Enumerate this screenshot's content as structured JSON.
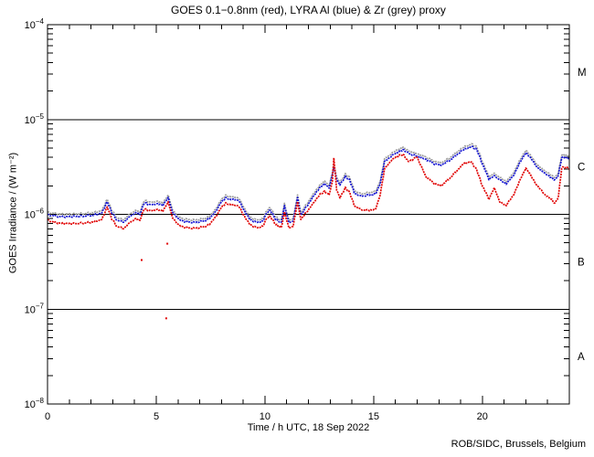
{
  "credit": "ROB/SIDC, Brussels, Belgium",
  "chart_data": {
    "type": "line",
    "title": "GOES 0.1−0.8nm (red), LYRA Al (blue) & Zr (grey) proxy",
    "xlabel": "Time / h UTC, 18 Sep 2022",
    "ylabel": "GOES Irradiance / (W m⁻²)",
    "xlim": [
      0,
      24
    ],
    "ylim": [
      1e-08,
      0.0001
    ],
    "x_major_ticks": [
      0,
      5,
      10,
      15,
      20
    ],
    "x_minor_step": 1,
    "y_tick_exps": [
      -4,
      -5,
      -6,
      -7,
      -8
    ],
    "y_ticks": [
      {
        "base": "10",
        "sup": "−4"
      },
      {
        "base": "10",
        "sup": "−5"
      },
      {
        "base": "10",
        "sup": "−6"
      },
      {
        "base": "10",
        "sup": "−7"
      },
      {
        "base": "10",
        "sup": "−8"
      }
    ],
    "reference_line_values": [
      1e-05,
      1e-06,
      1e-07
    ],
    "flare_class_labels": [
      {
        "label": "M",
        "value": 3.16e-05
      },
      {
        "label": "C",
        "value": 3.16e-06
      },
      {
        "label": "B",
        "value": 3.16e-07
      },
      {
        "label": "A",
        "value": 3.16e-08
      }
    ],
    "grid": false,
    "legend": "encoded in title colors",
    "background": "#ffffff",
    "frame_color": "#000000",
    "value_scale": 1e-06,
    "hours": [
      0.0,
      0.3,
      0.7,
      1.2,
      1.7,
      2.1,
      2.5,
      2.75,
      2.95,
      3.2,
      3.5,
      3.8,
      4.05,
      4.25,
      4.45,
      4.7,
      5.0,
      5.3,
      5.55,
      5.75,
      6.0,
      6.3,
      6.7,
      7.1,
      7.45,
      7.7,
      8.0,
      8.2,
      8.5,
      8.8,
      9.0,
      9.3,
      9.65,
      9.9,
      10.1,
      10.25,
      10.5,
      10.75,
      10.9,
      11.1,
      11.3,
      11.5,
      11.65,
      11.9,
      12.2,
      12.5,
      12.75,
      12.95,
      13.1,
      13.17,
      13.3,
      13.45,
      13.7,
      13.9,
      14.1,
      14.4,
      14.8,
      15.1,
      15.3,
      15.5,
      15.8,
      16.1,
      16.35,
      16.6,
      17.0,
      17.4,
      17.8,
      18.1,
      18.5,
      18.9,
      19.2,
      19.5,
      19.75,
      20.0,
      20.3,
      20.55,
      20.8,
      21.1,
      21.4,
      21.7,
      22.0,
      22.3,
      22.6,
      22.9,
      23.15,
      23.35,
      23.5,
      23.65,
      23.85,
      24.0
    ],
    "series": [
      {
        "name": "Zr (grey) proxy",
        "color": "#9c9c9c",
        "values": [
          1.06,
          1.02,
          1.0,
          1.01,
          1.02,
          1.04,
          1.09,
          1.44,
          1.11,
          0.91,
          0.88,
          1.01,
          1.1,
          1.06,
          1.41,
          1.33,
          1.38,
          1.31,
          1.59,
          1.11,
          0.95,
          0.89,
          0.87,
          0.89,
          0.95,
          1.11,
          1.43,
          1.57,
          1.53,
          1.48,
          1.22,
          0.93,
          0.87,
          0.9,
          1.11,
          1.17,
          0.93,
          0.87,
          1.29,
          0.87,
          0.9,
          1.59,
          1.04,
          1.27,
          1.59,
          2.01,
          2.23,
          2.01,
          2.76,
          3.29,
          2.44,
          2.17,
          2.65,
          2.44,
          1.8,
          1.64,
          1.7,
          1.75,
          2.23,
          3.82,
          4.35,
          4.77,
          5.09,
          4.66,
          4.35,
          4.03,
          3.6,
          3.5,
          3.92,
          4.66,
          5.19,
          5.51,
          5.09,
          3.6,
          2.49,
          2.7,
          2.44,
          2.23,
          2.65,
          3.6,
          4.77,
          3.92,
          3.18,
          2.86,
          2.6,
          2.44,
          2.76,
          4.24,
          4.19,
          4.13
        ]
      },
      {
        "name": "LYRA Al (blue)",
        "color": "#1414d2",
        "values": [
          1.0,
          0.96,
          0.94,
          0.95,
          0.96,
          0.98,
          1.03,
          1.36,
          1.05,
          0.86,
          0.83,
          0.95,
          1.04,
          1.0,
          1.33,
          1.25,
          1.3,
          1.24,
          1.5,
          1.05,
          0.9,
          0.84,
          0.82,
          0.84,
          0.9,
          1.05,
          1.35,
          1.48,
          1.44,
          1.4,
          1.15,
          0.88,
          0.82,
          0.85,
          1.05,
          1.1,
          0.88,
          0.82,
          1.22,
          0.82,
          0.85,
          1.5,
          0.98,
          1.2,
          1.5,
          1.9,
          2.1,
          1.9,
          2.6,
          3.1,
          2.3,
          2.05,
          2.5,
          2.3,
          1.7,
          1.55,
          1.6,
          1.65,
          2.1,
          3.6,
          4.1,
          4.5,
          4.8,
          4.4,
          4.1,
          3.8,
          3.4,
          3.3,
          3.7,
          4.4,
          4.9,
          5.2,
          4.8,
          3.4,
          2.35,
          2.55,
          2.3,
          2.1,
          2.5,
          3.4,
          4.5,
          3.7,
          3.0,
          2.7,
          2.45,
          2.3,
          2.6,
          4.0,
          3.95,
          3.9
        ]
      },
      {
        "name": "GOES 0.1−0.8nm (red)",
        "color": "#e00000",
        "values": [
          0.88,
          0.82,
          0.8,
          0.8,
          0.81,
          0.83,
          0.88,
          1.2,
          0.9,
          0.74,
          0.71,
          0.82,
          0.9,
          0.87,
          1.15,
          1.08,
          1.13,
          1.08,
          1.35,
          0.92,
          0.78,
          0.73,
          0.71,
          0.73,
          0.78,
          0.92,
          1.18,
          1.3,
          1.26,
          1.22,
          1.0,
          0.78,
          0.72,
          0.75,
          0.92,
          0.95,
          0.78,
          0.72,
          1.05,
          0.72,
          0.75,
          1.35,
          0.88,
          1.05,
          1.28,
          1.6,
          1.75,
          1.6,
          2.2,
          3.9,
          1.8,
          1.5,
          1.9,
          1.7,
          1.25,
          1.12,
          1.1,
          1.15,
          1.6,
          3.0,
          3.7,
          4.1,
          4.3,
          3.6,
          4.0,
          2.5,
          2.1,
          2.0,
          2.4,
          3.0,
          3.5,
          3.55,
          2.9,
          2.0,
          1.45,
          1.9,
          1.35,
          1.25,
          1.55,
          2.2,
          3.1,
          2.4,
          1.9,
          1.6,
          1.45,
          1.3,
          1.55,
          3.1,
          3.15,
          3.0
        ],
        "stray_points": [
          [
            4.33,
            0.33
          ],
          [
            5.51,
            0.49
          ],
          [
            5.46,
            0.08
          ]
        ]
      }
    ]
  }
}
